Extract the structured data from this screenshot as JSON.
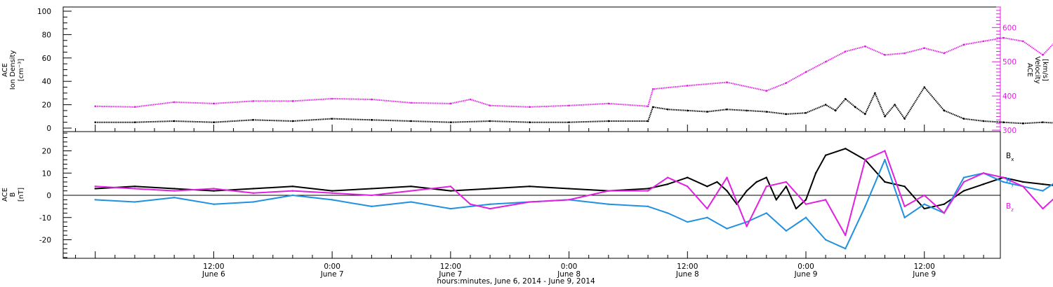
{
  "chart_data": [
    {
      "type": "scatter",
      "panel": "top",
      "ylabel": [
        "ACE",
        "Ion Density",
        "[cm⁻³]"
      ],
      "ylabel_right": [
        "ACE",
        "Velocity",
        "[km/s]"
      ],
      "ylim": [
        0,
        100
      ],
      "ylim_right": [
        300,
        660
      ],
      "yticks": [
        0,
        20,
        40,
        60,
        80,
        100
      ],
      "yticks_right": [
        300,
        400,
        500,
        600
      ],
      "series": [
        {
          "axis": "left",
          "color": "#000000",
          "x": [
            0,
            4,
            8,
            12,
            16,
            20,
            24,
            28,
            32,
            36,
            40,
            44,
            48,
            52,
            56,
            56.5,
            58,
            60,
            62,
            64,
            66,
            68,
            70,
            72,
            74,
            75,
            76,
            77,
            78,
            79,
            80,
            81,
            82,
            84,
            86,
            88,
            90,
            92,
            94,
            96,
            100,
            104,
            108,
            112,
            116,
            120
          ],
          "values": [
            5,
            5,
            6,
            5,
            7,
            6,
            8,
            7,
            6,
            5,
            6,
            5,
            5,
            6,
            6,
            18,
            16,
            15,
            14,
            16,
            15,
            14,
            12,
            13,
            20,
            15,
            25,
            18,
            12,
            30,
            10,
            20,
            8,
            35,
            15,
            8,
            6,
            5,
            4,
            5,
            3,
            2,
            2,
            2,
            2,
            1
          ]
        },
        {
          "axis": "right",
          "color": "#e020e0",
          "x": [
            0,
            4,
            8,
            12,
            16,
            20,
            24,
            28,
            32,
            36,
            38,
            40,
            44,
            48,
            52,
            56,
            56.5,
            60,
            64,
            68,
            70,
            72,
            74,
            76,
            78,
            80,
            82,
            84,
            86,
            88,
            90,
            92,
            94,
            96,
            98,
            100,
            102,
            104,
            106,
            108,
            110,
            112,
            114,
            116,
            118,
            120
          ],
          "values": [
            370,
            368,
            382,
            378,
            385,
            385,
            392,
            390,
            380,
            378,
            390,
            372,
            368,
            372,
            378,
            370,
            420,
            430,
            440,
            415,
            438,
            470,
            500,
            530,
            545,
            520,
            525,
            540,
            525,
            550,
            560,
            570,
            560,
            520,
            580,
            600,
            590,
            610,
            630,
            625,
            610,
            600,
            590,
            570,
            555,
            545
          ]
        }
      ]
    },
    {
      "type": "line",
      "panel": "bottom",
      "ylabel": [
        "ACE",
        "B",
        "[nT]"
      ],
      "ylim": [
        -28,
        28
      ],
      "yticks": [
        -20,
        -10,
        0,
        10,
        20
      ],
      "x_axis_title": "hours:minutes, June  6, 2014 - June  9, 2014",
      "x_ticks": [
        {
          "t": 12,
          "line1": "12:00",
          "line2": "June 6"
        },
        {
          "t": 24,
          "line1": "0:00",
          "line2": "June 7"
        },
        {
          "t": 36,
          "line1": "12:00",
          "line2": "June 7"
        },
        {
          "t": 48,
          "line1": "0:00",
          "line2": "June 8"
        },
        {
          "t": 60,
          "line1": "12:00",
          "line2": "June 8"
        },
        {
          "t": 72,
          "line1": "0:00",
          "line2": "June 9"
        },
        {
          "t": 84,
          "line1": "12:00",
          "line2": "June 9"
        }
      ],
      "series": [
        {
          "name": "Bx",
          "color": "#000000",
          "x": [
            0,
            4,
            8,
            12,
            16,
            20,
            24,
            28,
            32,
            36,
            40,
            44,
            48,
            52,
            56,
            58,
            60,
            62,
            63,
            64,
            65,
            66,
            67,
            68,
            69,
            70,
            71,
            72,
            73,
            74,
            76,
            78,
            80,
            82,
            84,
            86,
            88,
            90,
            92,
            94,
            96,
            98,
            100,
            102,
            104,
            106,
            108,
            110,
            112,
            114,
            116,
            118,
            120
          ],
          "values": [
            3,
            4,
            3,
            2,
            3,
            4,
            2,
            3,
            4,
            2,
            3,
            4,
            3,
            2,
            3,
            5,
            8,
            4,
            6,
            2,
            -4,
            2,
            6,
            8,
            -2,
            4,
            -6,
            -2,
            10,
            18,
            21,
            16,
            6,
            4,
            -6,
            -4,
            2,
            5,
            8,
            6,
            5,
            4,
            6,
            7,
            5,
            -5,
            -2,
            4,
            6,
            5,
            3,
            4,
            3
          ]
        },
        {
          "name": "By",
          "color": "#2090e0",
          "x": [
            0,
            4,
            8,
            12,
            16,
            20,
            24,
            28,
            32,
            36,
            40,
            44,
            48,
            52,
            56,
            58,
            60,
            62,
            64,
            66,
            68,
            70,
            72,
            74,
            76,
            78,
            80,
            82,
            84,
            86,
            88,
            90,
            92,
            94,
            96,
            98,
            100,
            102,
            104,
            106,
            108,
            110,
            112,
            114,
            116,
            118,
            120
          ],
          "values": [
            -2,
            -3,
            -1,
            -4,
            -3,
            0,
            -2,
            -5,
            -3,
            -6,
            -4,
            -3,
            -2,
            -4,
            -5,
            -8,
            -12,
            -10,
            -15,
            -12,
            -8,
            -16,
            -10,
            -20,
            -24,
            -5,
            16,
            -10,
            -4,
            -8,
            8,
            10,
            6,
            4,
            2,
            8,
            -12,
            6,
            4,
            0,
            3,
            1,
            0,
            -1,
            1,
            0,
            -1
          ]
        },
        {
          "name": "Bz",
          "color": "#e020e0",
          "x": [
            0,
            4,
            8,
            12,
            16,
            20,
            24,
            28,
            32,
            36,
            38,
            40,
            44,
            48,
            52,
            56,
            58,
            60,
            62,
            64,
            66,
            68,
            70,
            72,
            74,
            76,
            78,
            80,
            82,
            84,
            86,
            88,
            90,
            92,
            94,
            96,
            98,
            100,
            102,
            104,
            106,
            108,
            110,
            112,
            114,
            116,
            118,
            120
          ],
          "values": [
            4,
            3,
            2,
            3,
            1,
            2,
            1,
            0,
            2,
            4,
            -4,
            -6,
            -3,
            -2,
            2,
            2,
            8,
            4,
            -6,
            8,
            -14,
            4,
            6,
            -4,
            -2,
            -18,
            16,
            20,
            -5,
            0,
            -8,
            6,
            10,
            8,
            4,
            -6,
            2,
            5,
            2,
            1,
            0,
            0,
            -1,
            -1,
            -2,
            -2,
            -1,
            -1
          ]
        }
      ]
    }
  ],
  "figure": {
    "legend": {
      "bx": {
        "main": "B",
        "sub": "x"
      },
      "by": {
        "main": "B",
        "sub": "y"
      },
      "bz": {
        "main": "B",
        "sub": "z"
      }
    },
    "colors": {
      "black": "#000000",
      "magenta": "#e020e0",
      "blue": "#2090e0"
    }
  }
}
